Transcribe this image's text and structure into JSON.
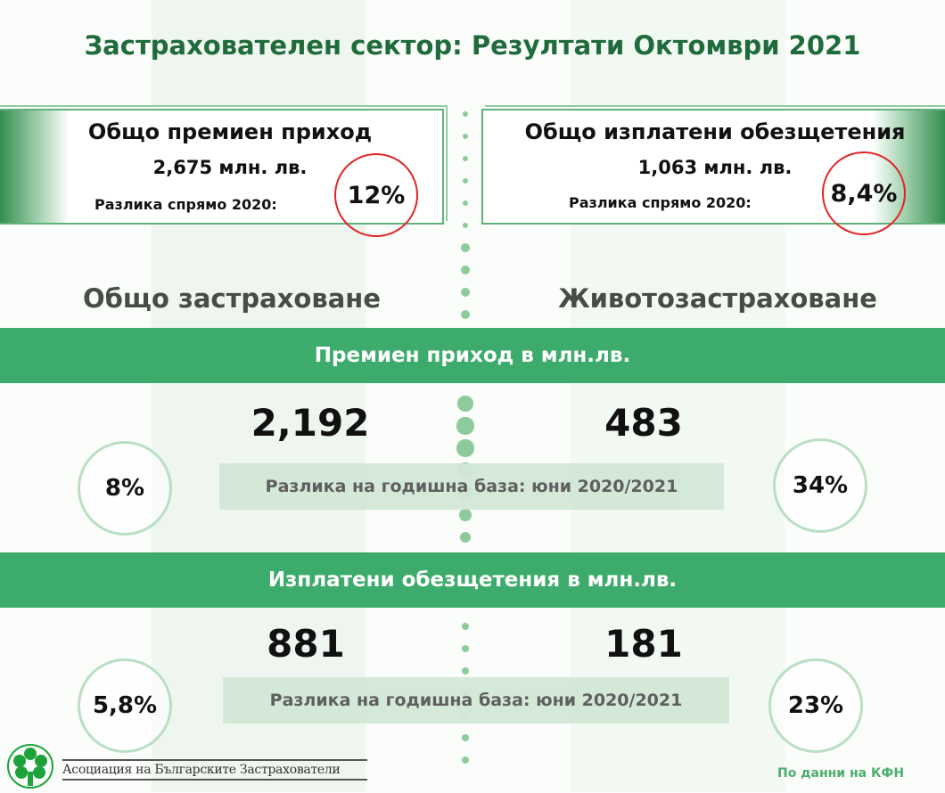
{
  "title": "Застрахователен сектор: Резултати Октомври 2021",
  "summary": {
    "premium": {
      "label": "Общо премиен приход",
      "value": "2,675  млн. лв.",
      "diff_label": "Разлика спрямо 2020:",
      "diff": "12%"
    },
    "claims": {
      "label": "Общо изплатени обезщетения",
      "value": "1,063  млн. лв.",
      "diff_label": "Разлика спрямо 2020:",
      "diff": "8,4%"
    }
  },
  "columns": {
    "left": "Общо застраховане",
    "right": "Животозастраховане"
  },
  "sections": [
    {
      "banner": "Премиен приход в млн.лв.",
      "left_value": "2,192",
      "right_value": "483",
      "note": "Разлика на годишна база: юни 2020/2021",
      "left_change": "8%",
      "right_change": "34%"
    },
    {
      "banner": "Изплатени обезщетения в млн.лв.",
      "left_value": "881",
      "right_value": "181",
      "note": "Разлика на годишна база: юни 2020/2021",
      "left_change": "5,8%",
      "right_change": "23%"
    }
  ],
  "footer": {
    "logo_text": "Асоциация на Българските Застрахователи",
    "source": "По данни на КФН"
  },
  "colors": {
    "title": "#1f6b3b",
    "banner": "#3dab6b",
    "highlight_circle": "#e02424",
    "change_circle": "#b9dfc3",
    "note_box": "#d3e8d7"
  }
}
